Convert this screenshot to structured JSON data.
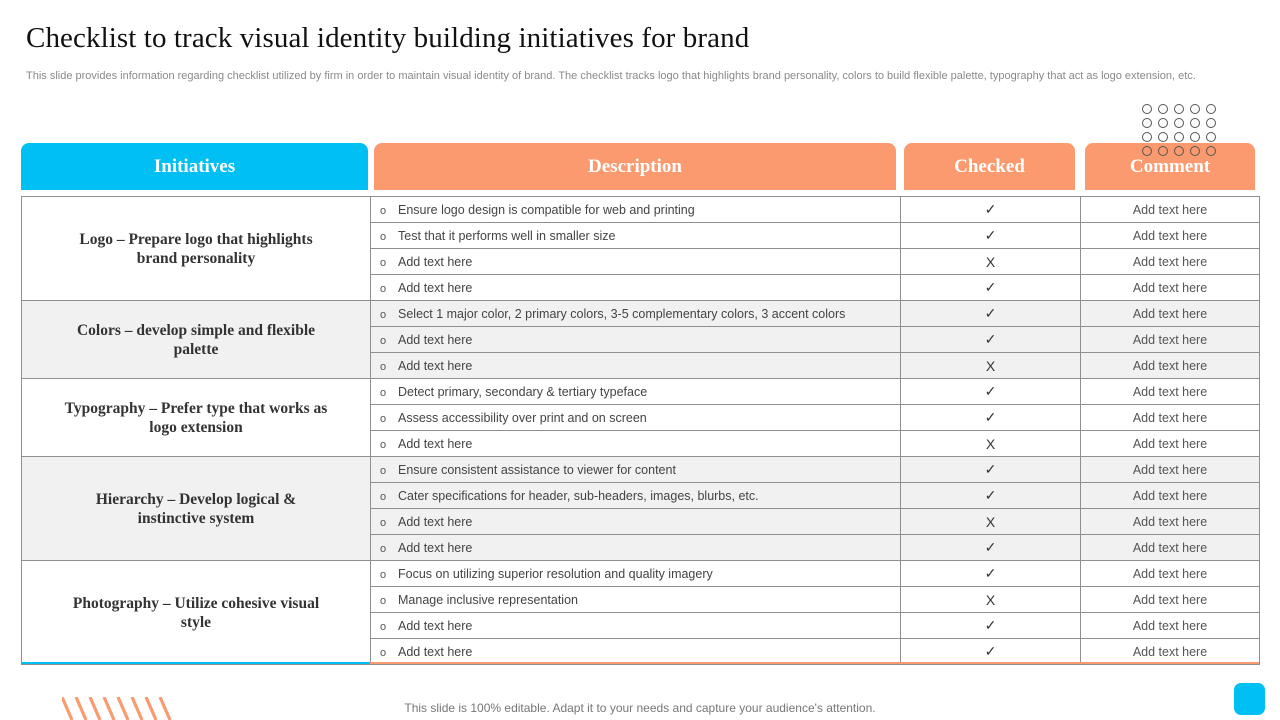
{
  "title": "Checklist to track visual identity building initiatives for brand",
  "subtitle": "This slide provides information regarding checklist utilized by firm in order to maintain visual identity of brand. The checklist tracks logo that highlights brand personality, colors to build flexible palette, typography that act as logo extension, etc.",
  "headers": {
    "initiatives": "Initiatives",
    "description": "Description",
    "checked": "Checked",
    "comment": "Comment"
  },
  "bullet": "o",
  "colors": {
    "blue": "#00bff3",
    "orange": "#fb9a6f"
  },
  "groups": [
    {
      "initiative": "Logo – Prepare logo that highlights brand personality",
      "rows": [
        {
          "desc": "Ensure logo design is compatible for web and printing",
          "checked": "✓",
          "comment": "Add text here"
        },
        {
          "desc": "Test that it performs  well in smaller size",
          "checked": "✓",
          "comment": "Add text here"
        },
        {
          "desc": "Add text here",
          "checked": "X",
          "comment": "Add text here"
        },
        {
          "desc": "Add text here",
          "checked": "✓",
          "comment": "Add text here"
        }
      ]
    },
    {
      "initiative": "Colors – develop simple and flexible palette",
      "rows": [
        {
          "desc": "Select 1 major color, 2 primary colors, 3-5 complementary colors, 3 accent colors",
          "checked": "✓",
          "comment": "Add text here"
        },
        {
          "desc": "Add text here",
          "checked": "✓",
          "comment": "Add text here"
        },
        {
          "desc": "Add text here",
          "checked": "X",
          "comment": "Add text here"
        }
      ]
    },
    {
      "initiative": "Typography – Prefer type that works as logo extension",
      "rows": [
        {
          "desc": "Detect primary, secondary & tertiary typeface",
          "checked": "✓",
          "comment": "Add text here"
        },
        {
          "desc": "Assess accessibility over print and on screen",
          "checked": "✓",
          "comment": "Add text here"
        },
        {
          "desc": "Add text here",
          "checked": "X",
          "comment": "Add text here"
        }
      ]
    },
    {
      "initiative": "Hierarchy – Develop logical & instinctive system",
      "rows": [
        {
          "desc": "Ensure consistent assistance to viewer for content",
          "checked": "✓",
          "comment": "Add text here"
        },
        {
          "desc": "Cater specifications for header, sub-headers, images, blurbs, etc.",
          "checked": "✓",
          "comment": "Add text here"
        },
        {
          "desc": "Add text here",
          "checked": "X",
          "comment": "Add text here"
        },
        {
          "desc": "Add text here",
          "checked": "✓",
          "comment": "Add text here"
        }
      ]
    },
    {
      "initiative": "Photography – Utilize cohesive visual style",
      "rows": [
        {
          "desc": "Focus on utilizing superior resolution and quality imagery",
          "checked": "✓",
          "comment": "Add text here"
        },
        {
          "desc": "Manage inclusive representation",
          "checked": "X",
          "comment": "Add text here"
        },
        {
          "desc": "Add text here",
          "checked": "✓",
          "comment": "Add text here"
        },
        {
          "desc": "Add text here",
          "checked": "✓",
          "comment": "Add text here"
        }
      ]
    }
  ],
  "footer": "This slide is 100% editable. Adapt it to your needs and capture your audience's attention."
}
